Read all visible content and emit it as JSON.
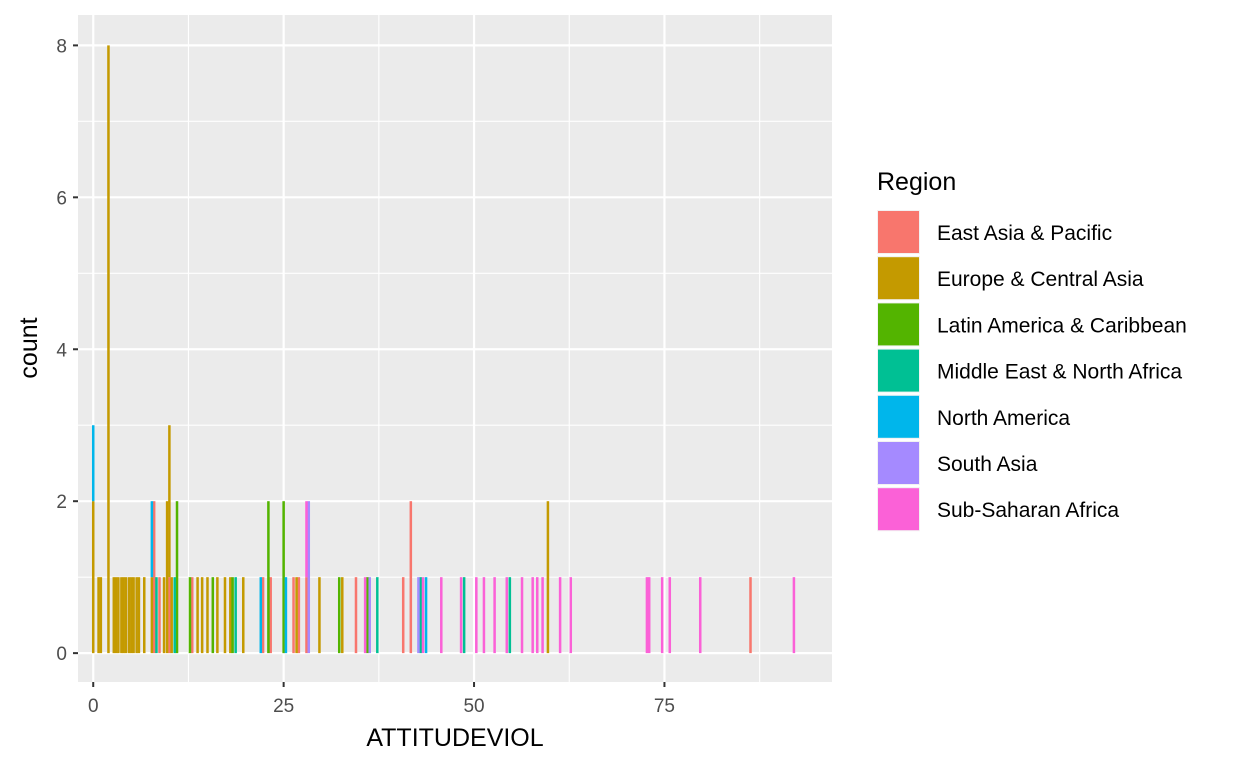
{
  "chart_data": {
    "type": "bar",
    "subtype": "stacked-histogram",
    "title": "",
    "xlabel": "ATTITUDEVIOL",
    "ylabel": "count",
    "xlim": [
      -2,
      97
    ],
    "ylim": [
      -0.38,
      8.4
    ],
    "x_ticks": [
      0,
      25,
      50,
      75
    ],
    "y_ticks": [
      0,
      2,
      4,
      6,
      8
    ],
    "grid": true,
    "legend": {
      "title": "Region",
      "position": "right"
    },
    "series": [
      {
        "name": "East Asia & Pacific",
        "color": "#F8766D",
        "points": [
          {
            "x": 8.0,
            "count": 2
          },
          {
            "x": 8.7,
            "count": 1
          },
          {
            "x": 10.0,
            "count": 1
          },
          {
            "x": 13.0,
            "count": 1
          },
          {
            "x": 22.3,
            "count": 1
          },
          {
            "x": 23.3,
            "count": 1
          },
          {
            "x": 26.3,
            "count": 1
          },
          {
            "x": 27.0,
            "count": 1
          },
          {
            "x": 28.0,
            "count": 1
          },
          {
            "x": 34.5,
            "count": 1
          },
          {
            "x": 40.7,
            "count": 1
          },
          {
            "x": 41.7,
            "count": 2
          },
          {
            "x": 86.3,
            "count": 1
          }
        ]
      },
      {
        "name": "Europe & Central Asia",
        "color": "#C49A00",
        "points": [
          {
            "x": 0.0,
            "count": 2
          },
          {
            "x": 0.7,
            "count": 1
          },
          {
            "x": 1.0,
            "count": 1
          },
          {
            "x": 2.0,
            "count": 8
          },
          {
            "x": 2.7,
            "count": 1
          },
          {
            "x": 3.0,
            "count": 1
          },
          {
            "x": 3.3,
            "count": 1
          },
          {
            "x": 3.7,
            "count": 1
          },
          {
            "x": 4.0,
            "count": 1
          },
          {
            "x": 4.3,
            "count": 1
          },
          {
            "x": 4.7,
            "count": 1
          },
          {
            "x": 5.0,
            "count": 1
          },
          {
            "x": 5.3,
            "count": 1
          },
          {
            "x": 5.7,
            "count": 1
          },
          {
            "x": 6.0,
            "count": 1
          },
          {
            "x": 6.7,
            "count": 1
          },
          {
            "x": 7.7,
            "count": 1
          },
          {
            "x": 9.3,
            "count": 1
          },
          {
            "x": 9.7,
            "count": 2
          },
          {
            "x": 10.0,
            "count": 2
          },
          {
            "x": 10.3,
            "count": 1
          },
          {
            "x": 13.7,
            "count": 1
          },
          {
            "x": 14.3,
            "count": 1
          },
          {
            "x": 15.0,
            "count": 1
          },
          {
            "x": 16.3,
            "count": 1
          },
          {
            "x": 17.3,
            "count": 1
          },
          {
            "x": 18.0,
            "count": 1
          },
          {
            "x": 19.7,
            "count": 1
          },
          {
            "x": 26.7,
            "count": 1
          },
          {
            "x": 29.7,
            "count": 1
          },
          {
            "x": 32.7,
            "count": 1
          },
          {
            "x": 59.7,
            "count": 2
          }
        ]
      },
      {
        "name": "Latin America & Caribbean",
        "color": "#53B400",
        "points": [
          {
            "x": 11.0,
            "count": 2
          },
          {
            "x": 12.7,
            "count": 1
          },
          {
            "x": 15.7,
            "count": 1
          },
          {
            "x": 18.3,
            "count": 1
          },
          {
            "x": 23.0,
            "count": 2
          },
          {
            "x": 25.0,
            "count": 2
          },
          {
            "x": 32.3,
            "count": 1
          },
          {
            "x": 36.0,
            "count": 1
          }
        ]
      },
      {
        "name": "Middle East & North Africa",
        "color": "#00C094",
        "points": [
          {
            "x": 8.3,
            "count": 1
          },
          {
            "x": 10.7,
            "count": 1
          },
          {
            "x": 18.7,
            "count": 1
          },
          {
            "x": 37.3,
            "count": 1
          },
          {
            "x": 43.0,
            "count": 1
          },
          {
            "x": 48.7,
            "count": 1
          },
          {
            "x": 54.7,
            "count": 1
          }
        ]
      },
      {
        "name": "North America",
        "color": "#00B6EB",
        "points": [
          {
            "x": 0.0,
            "count": 1
          },
          {
            "x": 7.7,
            "count": 1
          },
          {
            "x": 22.0,
            "count": 1
          },
          {
            "x": 25.3,
            "count": 1
          },
          {
            "x": 43.7,
            "count": 1
          }
        ]
      },
      {
        "name": "South Asia",
        "color": "#A58AFF",
        "points": [
          {
            "x": 28.3,
            "count": 2
          },
          {
            "x": 36.3,
            "count": 1
          },
          {
            "x": 42.7,
            "count": 1
          }
        ]
      },
      {
        "name": "Sub-Saharan Africa",
        "color": "#FB61D7",
        "points": [
          {
            "x": 28.0,
            "count": 1
          },
          {
            "x": 35.7,
            "count": 1
          },
          {
            "x": 43.3,
            "count": 1
          },
          {
            "x": 45.7,
            "count": 1
          },
          {
            "x": 48.3,
            "count": 1
          },
          {
            "x": 50.3,
            "count": 1
          },
          {
            "x": 51.3,
            "count": 1
          },
          {
            "x": 52.7,
            "count": 1
          },
          {
            "x": 54.3,
            "count": 1
          },
          {
            "x": 56.3,
            "count": 1
          },
          {
            "x": 57.7,
            "count": 1
          },
          {
            "x": 58.3,
            "count": 1
          },
          {
            "x": 59.0,
            "count": 1
          },
          {
            "x": 61.3,
            "count": 1
          },
          {
            "x": 62.7,
            "count": 1
          },
          {
            "x": 72.7,
            "count": 1
          },
          {
            "x": 73.0,
            "count": 1
          },
          {
            "x": 74.7,
            "count": 1
          },
          {
            "x": 75.7,
            "count": 1
          },
          {
            "x": 79.7,
            "count": 1
          },
          {
            "x": 92.0,
            "count": 1
          }
        ]
      }
    ]
  },
  "colors": {
    "panel_background": "#EBEBEB",
    "grid": "#FFFFFF",
    "tick": "#333333",
    "tick_label": "#4D4D4D"
  }
}
